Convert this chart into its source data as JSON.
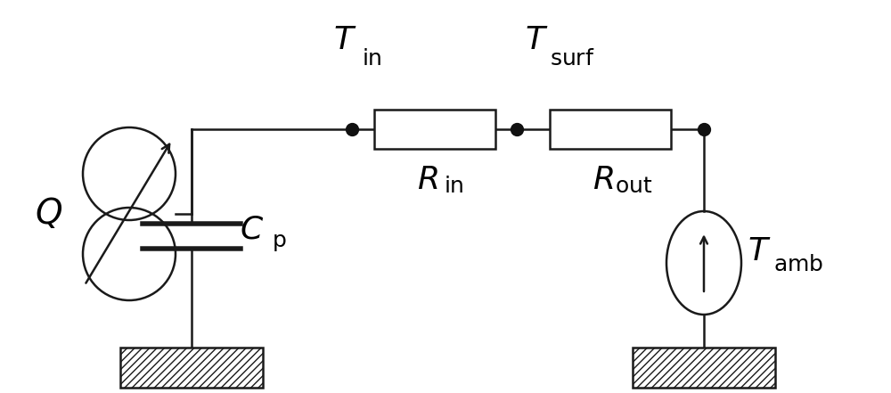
{
  "background_color": "#ffffff",
  "line_color": "#1a1a1a",
  "line_width": 1.8,
  "dot_color": "#111111",
  "dot_size": 100,
  "ground_hatch": "////",
  "font_size_main": 26,
  "font_size_sub": 18
}
